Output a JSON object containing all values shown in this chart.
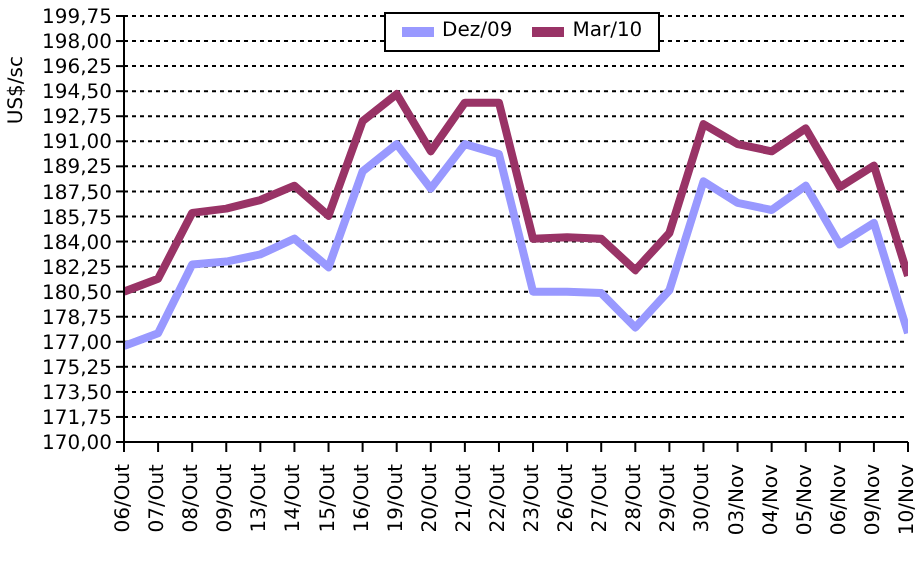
{
  "chart_data": {
    "type": "line",
    "ylabel": "US$/sc",
    "categories": [
      "06/Out",
      "07/Out",
      "08/Out",
      "09/Out",
      "13/Out",
      "14/Out",
      "15/Out",
      "16/Out",
      "19/Out",
      "20/Out",
      "21/Out",
      "22/Out",
      "23/Out",
      "26/Out",
      "27/Out",
      "28/Out",
      "29/Out",
      "30/Out",
      "03/Nov",
      "04/Nov",
      "05/Nov",
      "06/Nov",
      "09/Nov",
      "10/Nov"
    ],
    "series": [
      {
        "name": "Dez/09",
        "color": "#9999ff",
        "values": [
          176.7,
          177.6,
          182.4,
          182.6,
          183.1,
          184.2,
          182.2,
          188.9,
          190.8,
          187.7,
          190.8,
          190.1,
          180.5,
          180.5,
          180.4,
          178.0,
          180.6,
          188.2,
          186.7,
          186.2,
          187.9,
          183.8,
          185.3,
          177.6
        ]
      },
      {
        "name": "Mar/10",
        "color": "#993366",
        "values": [
          180.5,
          181.4,
          186.0,
          186.3,
          186.9,
          187.9,
          185.8,
          192.4,
          194.3,
          190.3,
          193.7,
          193.7,
          184.2,
          184.3,
          184.2,
          182.0,
          184.6,
          192.2,
          190.8,
          190.3,
          191.9,
          187.8,
          189.3,
          181.6
        ]
      }
    ],
    "ylim": [
      170,
      199.75
    ],
    "yticks": [
      {
        "value": 170,
        "label": "170,00"
      },
      {
        "value": 171.75,
        "label": "171,75"
      },
      {
        "value": 173.5,
        "label": "173,50"
      },
      {
        "value": 175.25,
        "label": "175,25"
      },
      {
        "value": 177,
        "label": "177,00"
      },
      {
        "value": 178.75,
        "label": "178,75"
      },
      {
        "value": 180.5,
        "label": "180,50"
      },
      {
        "value": 182.25,
        "label": "182,25"
      },
      {
        "value": 184,
        "label": "184,00"
      },
      {
        "value": 185.75,
        "label": "185,75"
      },
      {
        "value": 187.5,
        "label": "187,50"
      },
      {
        "value": 189.25,
        "label": "189,25"
      },
      {
        "value": 191,
        "label": "191,00"
      },
      {
        "value": 192.75,
        "label": "192,75"
      },
      {
        "value": 194.5,
        "label": "194,50"
      },
      {
        "value": 196.25,
        "label": "196,25"
      },
      {
        "value": 198,
        "label": "198,00"
      },
      {
        "value": 199.75,
        "label": "199,75"
      }
    ],
    "grid": "y",
    "legend": "top",
    "marker": "none",
    "line_style": "solid"
  }
}
